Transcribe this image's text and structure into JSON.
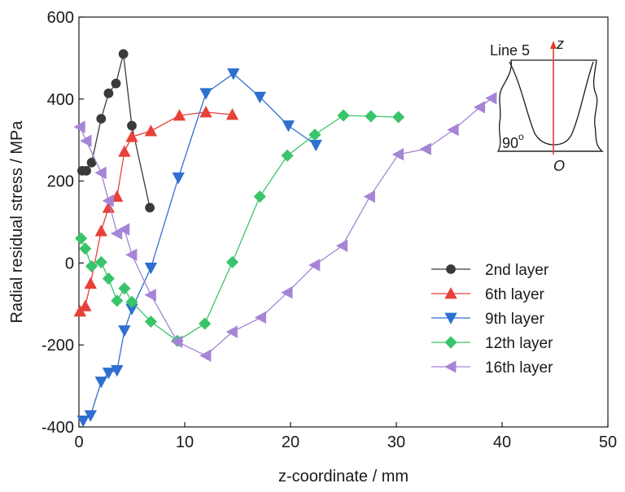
{
  "chart_data": {
    "type": "line",
    "xlabel": "z-coordinate / mm",
    "ylabel": "Radial residual stress / MPa",
    "xlim": [
      0,
      50
    ],
    "ylim": [
      -400,
      600
    ],
    "xticks": [
      0,
      10,
      20,
      30,
      40,
      50
    ],
    "yticks": [
      -400,
      -200,
      0,
      200,
      400,
      600
    ],
    "grid": false,
    "legend_position": "lower-right",
    "series": [
      {
        "name": "2nd layer",
        "color": "#3a3a3a",
        "marker": "circle",
        "x": [
          0.3,
          0.7,
          1.2,
          2.1,
          2.8,
          3.5,
          4.2,
          5.0,
          6.7
        ],
        "y": [
          225,
          225,
          245,
          352,
          414,
          438,
          510,
          335,
          135
        ]
      },
      {
        "name": "6th layer",
        "color": "#e8413a",
        "marker": "triangle-up",
        "x": [
          0.1,
          0.6,
          1.1,
          2.1,
          2.8,
          3.6,
          4.3,
          5.0,
          6.8,
          9.5,
          12.0,
          14.5
        ],
        "y": [
          -118,
          -105,
          -50,
          78,
          135,
          162,
          272,
          308,
          322,
          360,
          368,
          362
        ]
      },
      {
        "name": "9th layer",
        "color": "#2f6fd0",
        "marker": "triangle-down",
        "x": [
          0.4,
          1.1,
          2.1,
          2.8,
          3.6,
          4.3,
          5.0,
          6.8,
          9.4,
          12.0,
          14.6,
          17.1,
          19.8,
          22.4
        ],
        "y": [
          -385,
          -372,
          -290,
          -268,
          -262,
          -165,
          -112,
          -12,
          208,
          414,
          462,
          405,
          335,
          288
        ]
      },
      {
        "name": "12th layer",
        "color": "#39c46a",
        "marker": "diamond",
        "x": [
          0.2,
          0.6,
          1.2,
          2.1,
          2.8,
          3.6,
          4.3,
          5.0,
          6.8,
          9.3,
          11.9,
          14.5,
          17.1,
          19.7,
          22.3,
          25.0,
          27.6,
          30.2
        ],
        "y": [
          60,
          35,
          -8,
          2,
          -38,
          -92,
          -62,
          -95,
          -143,
          -190,
          -148,
          2,
          162,
          262,
          313,
          360,
          358,
          356
        ]
      },
      {
        "name": "16th layer",
        "color": "#a684d6",
        "marker": "triangle-left",
        "x": [
          0.1,
          0.7,
          2.1,
          2.8,
          3.6,
          4.3,
          5.0,
          6.8,
          9.3,
          12.0,
          14.5,
          17.2,
          19.7,
          22.3,
          24.9,
          27.5,
          30.2,
          32.8,
          35.4,
          37.9,
          39.0
        ],
        "y": [
          332,
          298,
          220,
          152,
          72,
          82,
          20,
          -78,
          -192,
          -226,
          -168,
          -133,
          -72,
          -5,
          42,
          162,
          265,
          278,
          325,
          380,
          402
        ]
      }
    ]
  },
  "inset": {
    "line_label": "Line 5",
    "axis_label": "z",
    "angle_label": "90",
    "angle_unit": "o",
    "origin_label": "O"
  }
}
